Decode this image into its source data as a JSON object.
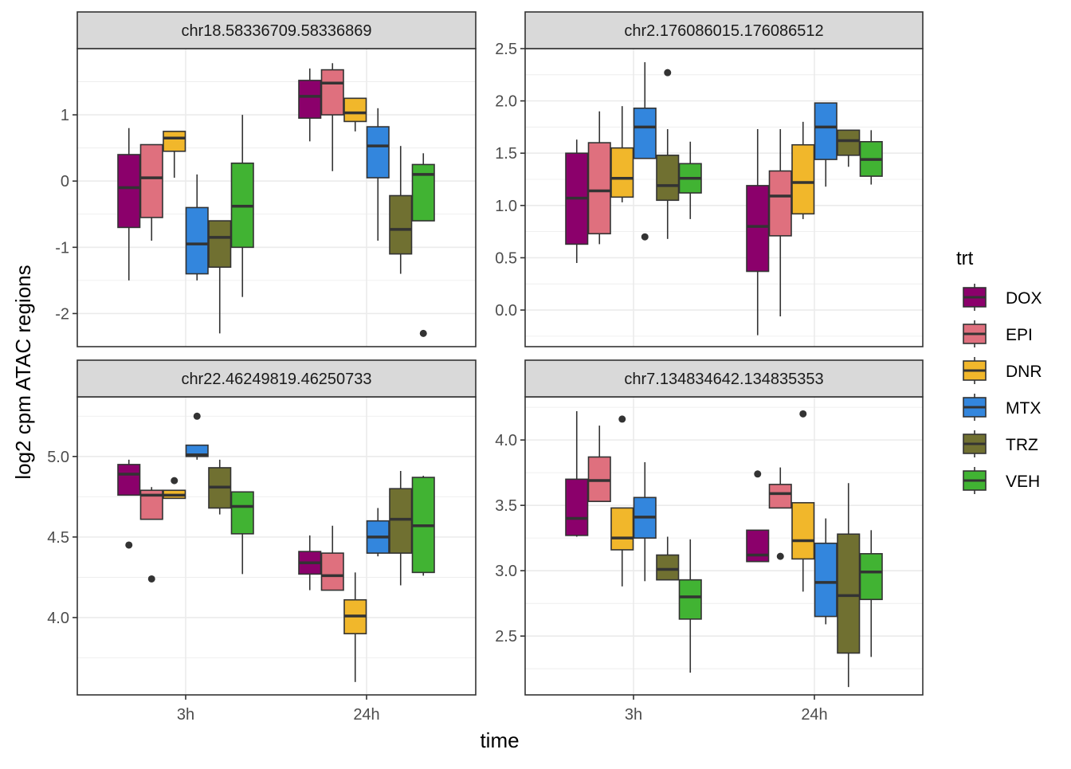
{
  "chart_data": {
    "type": "boxplot",
    "facet": "chr",
    "xlabel": "time",
    "ylabel": "log2 cpm ATAC regions",
    "categories": [
      "3h",
      "24h"
    ],
    "legend": {
      "title": "trt",
      "position": "right",
      "entries": [
        {
          "name": "DOX",
          "color": "#8B006B"
        },
        {
          "name": "EPI",
          "color": "#DF707E"
        },
        {
          "name": "DNR",
          "color": "#F1B72B"
        },
        {
          "name": "MTX",
          "color": "#3386DD"
        },
        {
          "name": "TRZ",
          "color": "#707031"
        },
        {
          "name": "VEH",
          "color": "#41B333"
        }
      ]
    },
    "panels": [
      {
        "title": "chr18.58336709.58336869",
        "ylim": [
          -2.5,
          2.0
        ],
        "yticks": [
          -2,
          -1,
          0,
          1
        ],
        "ytick_labels": [
          "-2",
          "-1",
          "0",
          "1"
        ],
        "boxes": {
          "3h": [
            {
              "trt": "DOX",
              "whisker_low": -1.5,
              "q1": -0.7,
              "median": -0.1,
              "q3": 0.4,
              "whisker_high": 0.8,
              "outliers": []
            },
            {
              "trt": "EPI",
              "whisker_low": -0.9,
              "q1": -0.55,
              "median": 0.05,
              "q3": 0.55,
              "whisker_high": 0.55,
              "outliers": []
            },
            {
              "trt": "DNR",
              "whisker_low": 0.05,
              "q1": 0.45,
              "median": 0.65,
              "q3": 0.75,
              "whisker_high": 0.75,
              "outliers": []
            },
            {
              "trt": "MTX",
              "whisker_low": -1.5,
              "q1": -1.4,
              "median": -0.95,
              "q3": -0.4,
              "whisker_high": 0.1,
              "outliers": []
            },
            {
              "trt": "TRZ",
              "whisker_low": -2.3,
              "q1": -1.3,
              "median": -0.85,
              "q3": -0.6,
              "whisker_high": -0.6,
              "outliers": []
            },
            {
              "trt": "VEH",
              "whisker_low": -1.75,
              "q1": -1.0,
              "median": -0.38,
              "q3": 0.27,
              "whisker_high": 1.0,
              "outliers": []
            }
          ],
          "24h": [
            {
              "trt": "DOX",
              "whisker_low": 0.6,
              "q1": 0.95,
              "median": 1.28,
              "q3": 1.52,
              "whisker_high": 1.7,
              "outliers": []
            },
            {
              "trt": "EPI",
              "whisker_low": 0.15,
              "q1": 1.0,
              "median": 1.48,
              "q3": 1.68,
              "whisker_high": 1.78,
              "outliers": []
            },
            {
              "trt": "DNR",
              "whisker_low": 0.75,
              "q1": 0.9,
              "median": 1.03,
              "q3": 1.25,
              "whisker_high": 1.25,
              "outliers": []
            },
            {
              "trt": "MTX",
              "whisker_low": -0.9,
              "q1": 0.05,
              "median": 0.53,
              "q3": 0.82,
              "whisker_high": 1.1,
              "outliers": []
            },
            {
              "trt": "TRZ",
              "whisker_low": -1.4,
              "q1": -1.1,
              "median": -0.73,
              "q3": -0.22,
              "whisker_high": 0.53,
              "outliers": []
            },
            {
              "trt": "VEH",
              "whisker_low": -0.6,
              "q1": -0.6,
              "median": 0.1,
              "q3": 0.25,
              "whisker_high": 0.42,
              "outliers": [
                -2.3
              ]
            }
          ]
        }
      },
      {
        "title": "chr2.176086015.176086512",
        "ylim": [
          -0.35,
          2.5
        ],
        "yticks": [
          0.0,
          0.5,
          1.0,
          1.5,
          2.0,
          2.5
        ],
        "ytick_labels": [
          "0.0",
          "0.5",
          "1.0",
          "1.5",
          "2.0",
          "2.5"
        ],
        "boxes": {
          "3h": [
            {
              "trt": "DOX",
              "whisker_low": 0.45,
              "q1": 0.63,
              "median": 1.07,
              "q3": 1.5,
              "whisker_high": 1.63,
              "outliers": []
            },
            {
              "trt": "EPI",
              "whisker_low": 0.63,
              "q1": 0.73,
              "median": 1.14,
              "q3": 1.6,
              "whisker_high": 1.9,
              "outliers": []
            },
            {
              "trt": "DNR",
              "whisker_low": 1.03,
              "q1": 1.08,
              "median": 1.26,
              "q3": 1.55,
              "whisker_high": 1.95,
              "outliers": []
            },
            {
              "trt": "MTX",
              "whisker_low": 1.45,
              "q1": 1.45,
              "median": 1.75,
              "q3": 1.93,
              "whisker_high": 2.37,
              "outliers": [
                0.7
              ]
            },
            {
              "trt": "TRZ",
              "whisker_low": 0.68,
              "q1": 1.05,
              "median": 1.19,
              "q3": 1.48,
              "whisker_high": 1.73,
              "outliers": [
                2.27
              ]
            },
            {
              "trt": "VEH",
              "whisker_low": 0.87,
              "q1": 1.12,
              "median": 1.26,
              "q3": 1.4,
              "whisker_high": 1.61,
              "outliers": []
            }
          ],
          "24h": [
            {
              "trt": "DOX",
              "whisker_low": -0.24,
              "q1": 0.37,
              "median": 0.8,
              "q3": 1.19,
              "whisker_high": 1.73,
              "outliers": []
            },
            {
              "trt": "EPI",
              "whisker_low": -0.06,
              "q1": 0.71,
              "median": 1.09,
              "q3": 1.33,
              "whisker_high": 1.73,
              "outliers": []
            },
            {
              "trt": "DNR",
              "whisker_low": 0.87,
              "q1": 0.92,
              "median": 1.22,
              "q3": 1.58,
              "whisker_high": 1.8,
              "outliers": []
            },
            {
              "trt": "MTX",
              "whisker_low": 1.18,
              "q1": 1.44,
              "median": 1.75,
              "q3": 1.98,
              "whisker_high": 1.98,
              "outliers": []
            },
            {
              "trt": "TRZ",
              "whisker_low": 1.37,
              "q1": 1.48,
              "median": 1.62,
              "q3": 1.72,
              "whisker_high": 1.72,
              "outliers": []
            },
            {
              "trt": "VEH",
              "whisker_low": 1.2,
              "q1": 1.28,
              "median": 1.44,
              "q3": 1.61,
              "whisker_high": 1.72,
              "outliers": []
            }
          ]
        }
      },
      {
        "title": "chr22.46249819.46250733",
        "ylim": [
          3.52,
          5.37
        ],
        "yticks": [
          4.0,
          4.5,
          5.0
        ],
        "ytick_labels": [
          "4.0",
          "4.5",
          "5.0"
        ],
        "boxes": {
          "3h": [
            {
              "trt": "DOX",
              "whisker_low": 4.76,
              "q1": 4.76,
              "median": 4.89,
              "q3": 4.95,
              "whisker_high": 4.98,
              "outliers": [
                4.45
              ]
            },
            {
              "trt": "EPI",
              "whisker_low": 4.61,
              "q1": 4.61,
              "median": 4.76,
              "q3": 4.79,
              "whisker_high": 4.81,
              "outliers": [
                4.24
              ]
            },
            {
              "trt": "DNR",
              "whisker_low": 4.74,
              "q1": 4.74,
              "median": 4.76,
              "q3": 4.79,
              "whisker_high": 4.79,
              "outliers": [
                4.85
              ]
            },
            {
              "trt": "MTX",
              "whisker_low": 4.98,
              "q1": 5.0,
              "median": 5.01,
              "q3": 5.07,
              "whisker_high": 5.07,
              "outliers": [
                5.25
              ]
            },
            {
              "trt": "TRZ",
              "whisker_low": 4.64,
              "q1": 4.68,
              "median": 4.81,
              "q3": 4.93,
              "whisker_high": 4.98,
              "outliers": []
            },
            {
              "trt": "VEH",
              "whisker_low": 4.27,
              "q1": 4.52,
              "median": 4.69,
              "q3": 4.78,
              "whisker_high": 4.78,
              "outliers": []
            }
          ],
          "24h": [
            {
              "trt": "DOX",
              "whisker_low": 4.17,
              "q1": 4.27,
              "median": 4.34,
              "q3": 4.41,
              "whisker_high": 4.51,
              "outliers": []
            },
            {
              "trt": "EPI",
              "whisker_low": 4.17,
              "q1": 4.17,
              "median": 4.26,
              "q3": 4.4,
              "whisker_high": 4.57,
              "outliers": []
            },
            {
              "trt": "DNR",
              "whisker_low": 3.6,
              "q1": 3.9,
              "median": 4.01,
              "q3": 4.11,
              "whisker_high": 4.28,
              "outliers": []
            },
            {
              "trt": "MTX",
              "whisker_low": 4.38,
              "q1": 4.4,
              "median": 4.5,
              "q3": 4.6,
              "whisker_high": 4.68,
              "outliers": []
            },
            {
              "trt": "TRZ",
              "whisker_low": 4.2,
              "q1": 4.4,
              "median": 4.61,
              "q3": 4.8,
              "whisker_high": 4.91,
              "outliers": []
            },
            {
              "trt": "VEH",
              "whisker_low": 4.26,
              "q1": 4.28,
              "median": 4.57,
              "q3": 4.87,
              "whisker_high": 4.88,
              "outliers": []
            }
          ]
        }
      },
      {
        "title": "chr7.134834642.134835353",
        "ylim": [
          2.05,
          4.33
        ],
        "yticks": [
          2.5,
          3.0,
          3.5,
          4.0
        ],
        "ytick_labels": [
          "2.5",
          "3.0",
          "3.5",
          "4.0"
        ],
        "boxes": {
          "3h": [
            {
              "trt": "DOX",
              "whisker_low": 3.26,
              "q1": 3.27,
              "median": 3.4,
              "q3": 3.7,
              "whisker_high": 4.22,
              "outliers": []
            },
            {
              "trt": "EPI",
              "whisker_low": 3.53,
              "q1": 3.53,
              "median": 3.69,
              "q3": 3.87,
              "whisker_high": 4.11,
              "outliers": []
            },
            {
              "trt": "DNR",
              "whisker_low": 2.88,
              "q1": 3.16,
              "median": 3.25,
              "q3": 3.48,
              "whisker_high": 3.48,
              "outliers": [
                4.16
              ]
            },
            {
              "trt": "MTX",
              "whisker_low": 2.92,
              "q1": 3.25,
              "median": 3.41,
              "q3": 3.56,
              "whisker_high": 3.83,
              "outliers": []
            },
            {
              "trt": "TRZ",
              "whisker_low": 2.93,
              "q1": 2.93,
              "median": 3.01,
              "q3": 3.12,
              "whisker_high": 3.26,
              "outliers": []
            },
            {
              "trt": "VEH",
              "whisker_low": 2.22,
              "q1": 2.63,
              "median": 2.8,
              "q3": 2.93,
              "whisker_high": 3.24,
              "outliers": []
            }
          ],
          "24h": [
            {
              "trt": "DOX",
              "whisker_low": 3.07,
              "q1": 3.07,
              "median": 3.12,
              "q3": 3.31,
              "whisker_high": 3.31,
              "outliers": [
                3.74
              ]
            },
            {
              "trt": "EPI",
              "whisker_low": 3.48,
              "q1": 3.48,
              "median": 3.59,
              "q3": 3.66,
              "whisker_high": 3.79,
              "outliers": [
                3.11
              ]
            },
            {
              "trt": "DNR",
              "whisker_low": 2.84,
              "q1": 3.09,
              "median": 3.23,
              "q3": 3.52,
              "whisker_high": 3.52,
              "outliers": [
                4.2
              ]
            },
            {
              "trt": "MTX",
              "whisker_low": 2.59,
              "q1": 2.65,
              "median": 2.91,
              "q3": 3.21,
              "whisker_high": 3.4,
              "outliers": []
            },
            {
              "trt": "TRZ",
              "whisker_low": 2.11,
              "q1": 2.37,
              "median": 2.81,
              "q3": 3.28,
              "whisker_high": 3.67,
              "outliers": []
            },
            {
              "trt": "VEH",
              "whisker_low": 2.34,
              "q1": 2.78,
              "median": 2.99,
              "q3": 3.13,
              "whisker_high": 3.31,
              "outliers": []
            }
          ]
        }
      }
    ],
    "grid": true
  }
}
